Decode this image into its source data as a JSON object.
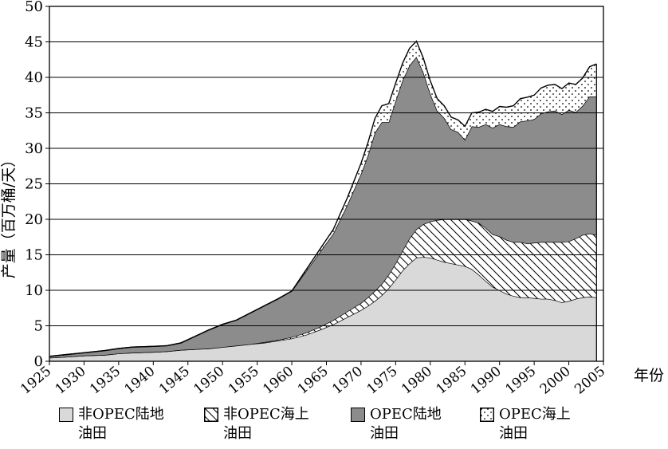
{
  "chart_data": {
    "type": "area",
    "stacked": true,
    "xlabel": "年份",
    "ylabel": "产量（百万桶/天）",
    "xlim": [
      1925,
      2005
    ],
    "ylim": [
      0,
      50
    ],
    "x_ticks": [
      "1925",
      "1930",
      "1935",
      "1940",
      "1945",
      "1950",
      "1955",
      "1960",
      "1965",
      "1970",
      "1975",
      "1980",
      "1985",
      "1990",
      "1995",
      "2000",
      "2005"
    ],
    "y_ticks": [
      "0",
      "5",
      "10",
      "15",
      "20",
      "25",
      "30",
      "35",
      "40",
      "45",
      "50"
    ],
    "grid": true,
    "x": [
      1925,
      1927,
      1930,
      1933,
      1935,
      1937,
      1940,
      1942,
      1944,
      1946,
      1948,
      1950,
      1952,
      1954,
      1956,
      1958,
      1960,
      1962,
      1964,
      1966,
      1968,
      1970,
      1971,
      1972,
      1973,
      1974,
      1975,
      1976,
      1977,
      1978,
      1979,
      1980,
      1981,
      1982,
      1983,
      1984,
      1985,
      1986,
      1987,
      1988,
      1989,
      1990,
      1991,
      1992,
      1993,
      1994,
      1995,
      1996,
      1997,
      1998,
      1999,
      2000,
      2001,
      2002,
      2003,
      2004
    ],
    "series": [
      {
        "name": "非OPEC陆地油田",
        "color": "#d9d9d9",
        "pattern": "solid",
        "values": [
          0.5,
          0.6,
          0.8,
          0.9,
          1.1,
          1.2,
          1.3,
          1.4,
          1.6,
          1.7,
          1.8,
          2.0,
          2.2,
          2.4,
          2.6,
          2.9,
          3.2,
          3.7,
          4.4,
          5.2,
          6.2,
          7.2,
          7.8,
          8.5,
          9.3,
          10.3,
          11.5,
          12.8,
          13.8,
          14.6,
          14.7,
          14.6,
          14.3,
          14.0,
          13.8,
          13.6,
          13.4,
          13.0,
          12.2,
          11.3,
          10.5,
          10.0,
          9.5,
          9.2,
          9.0,
          9.0,
          8.9,
          8.8,
          8.8,
          8.6,
          8.3,
          8.5,
          8.8,
          9.0,
          9.1,
          9.0
        ]
      },
      {
        "name": "非OPEC海上油田",
        "color": "#ffffff",
        "pattern": "hatch",
        "values": [
          0,
          0,
          0,
          0,
          0,
          0,
          0,
          0,
          0,
          0,
          0,
          0,
          0,
          0,
          0.1,
          0.1,
          0.2,
          0.3,
          0.4,
          0.6,
          0.8,
          1.0,
          1.2,
          1.4,
          1.6,
          1.9,
          2.3,
          2.8,
          3.5,
          4.0,
          4.6,
          5.1,
          5.6,
          6.0,
          6.2,
          6.4,
          6.6,
          6.8,
          7.3,
          7.5,
          7.4,
          7.6,
          7.6,
          7.6,
          7.8,
          7.6,
          7.8,
          8.0,
          8.0,
          8.2,
          8.5,
          8.4,
          8.5,
          8.8,
          8.9,
          8.8
        ]
      },
      {
        "name": "OPEC陆地油田",
        "color": "#8c8c8c",
        "pattern": "solid",
        "values": [
          0.2,
          0.3,
          0.4,
          0.6,
          0.7,
          0.8,
          0.8,
          0.8,
          1.0,
          1.8,
          2.6,
          3.2,
          3.6,
          4.4,
          5.1,
          5.8,
          6.5,
          8.6,
          10.5,
          12.2,
          15.0,
          18.2,
          20.0,
          22.3,
          22.8,
          21.5,
          22.9,
          24.0,
          24.4,
          24.3,
          21.4,
          18.0,
          15.4,
          14.3,
          12.7,
          12.3,
          11.2,
          13.3,
          13.5,
          14.6,
          15.0,
          15.8,
          16.0,
          16.2,
          17.0,
          17.3,
          17.4,
          18.1,
          18.4,
          18.5,
          18.0,
          18.5,
          17.8,
          18.2,
          19.3,
          19.5
        ]
      },
      {
        "name": "OPEC海上油田",
        "color": "#ffffff",
        "pattern": "dots",
        "values": [
          0,
          0,
          0,
          0,
          0,
          0,
          0,
          0,
          0,
          0,
          0,
          0,
          0,
          0,
          0,
          0,
          0,
          0.2,
          0.4,
          0.6,
          1.0,
          1.5,
          1.8,
          2.0,
          2.3,
          2.6,
          2.5,
          2.4,
          2.4,
          2.2,
          2.0,
          1.8,
          1.7,
          1.7,
          1.7,
          1.7,
          1.9,
          1.9,
          2.1,
          2.1,
          2.3,
          2.5,
          2.7,
          3.0,
          3.2,
          3.3,
          3.4,
          3.6,
          3.7,
          3.7,
          3.6,
          3.8,
          3.9,
          3.9,
          4.2,
          4.6
        ]
      }
    ]
  }
}
